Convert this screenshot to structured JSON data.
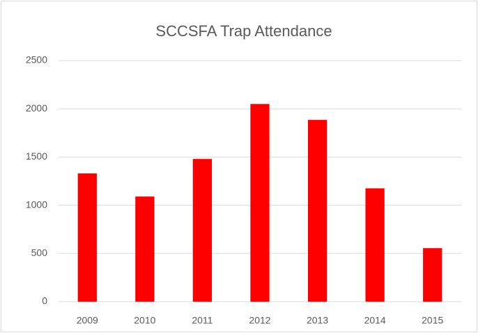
{
  "chart_data": {
    "type": "bar",
    "title": "SCCSFA Trap Attendance",
    "categories": [
      "2009",
      "2010",
      "2011",
      "2012",
      "2013",
      "2014",
      "2015"
    ],
    "values": [
      1330,
      1090,
      1480,
      2050,
      1885,
      1175,
      555
    ],
    "color": "#ff0000",
    "ylim": [
      0,
      2500
    ],
    "yticks": [
      0,
      500,
      1000,
      1500,
      2000,
      2500
    ],
    "grid": true
  }
}
